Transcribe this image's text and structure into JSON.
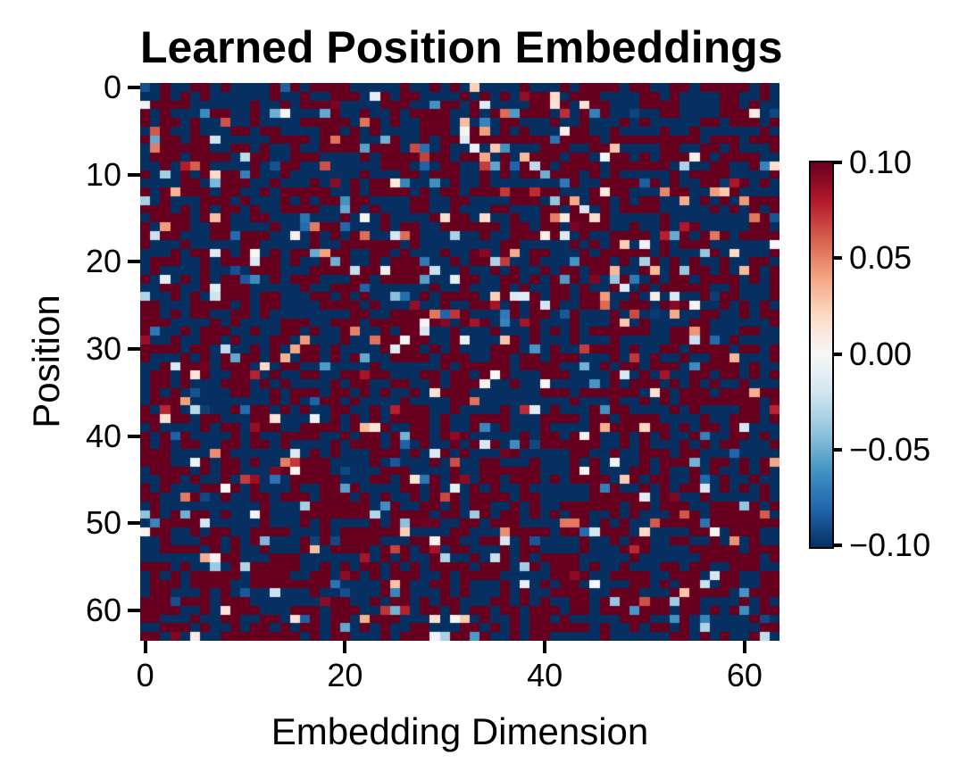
{
  "title": "Learned Position Embeddings",
  "chart_data": {
    "type": "heatmap",
    "title": "Learned Position Embeddings",
    "xlabel": "Embedding Dimension",
    "ylabel": "Position",
    "rows": 64,
    "cols": 64,
    "x_ticks": [
      0,
      20,
      40,
      60
    ],
    "y_ticks": [
      0,
      10,
      20,
      30,
      40,
      50,
      60
    ],
    "vmin": -0.1,
    "vmax": 0.1,
    "colormap_name": "RdBu_r",
    "colormap_stops": [
      "#053061",
      "#2166ac",
      "#4393c3",
      "#92c5de",
      "#d1e5f0",
      "#f7f7f7",
      "#fddbc7",
      "#f4a582",
      "#d6604d",
      "#b2182b",
      "#67001f"
    ],
    "colorbar_tick_labels": [
      "0.10",
      "0.05",
      "0.00",
      "−0.05",
      "−0.10"
    ],
    "colorbar_tick_values": [
      0.1,
      0.05,
      0.0,
      -0.05,
      -0.1
    ],
    "grid": false,
    "spines": false,
    "data_description": "64x64 matrix of learned position embedding weights; random-looking values with ~91% saturated beyond the ±0.10 color limits (split roughly evenly between dark red positive and dark blue negative) and ~9% intermediate values within (−0.10, 0.10)",
    "generation": {
      "seed": 7,
      "intermediate_fraction": 0.09,
      "positive_fraction": 0.5
    }
  },
  "colors": {
    "background": "#ffffff",
    "text": "#000000",
    "tick": "#000000",
    "colorbar_border": "#000000"
  }
}
